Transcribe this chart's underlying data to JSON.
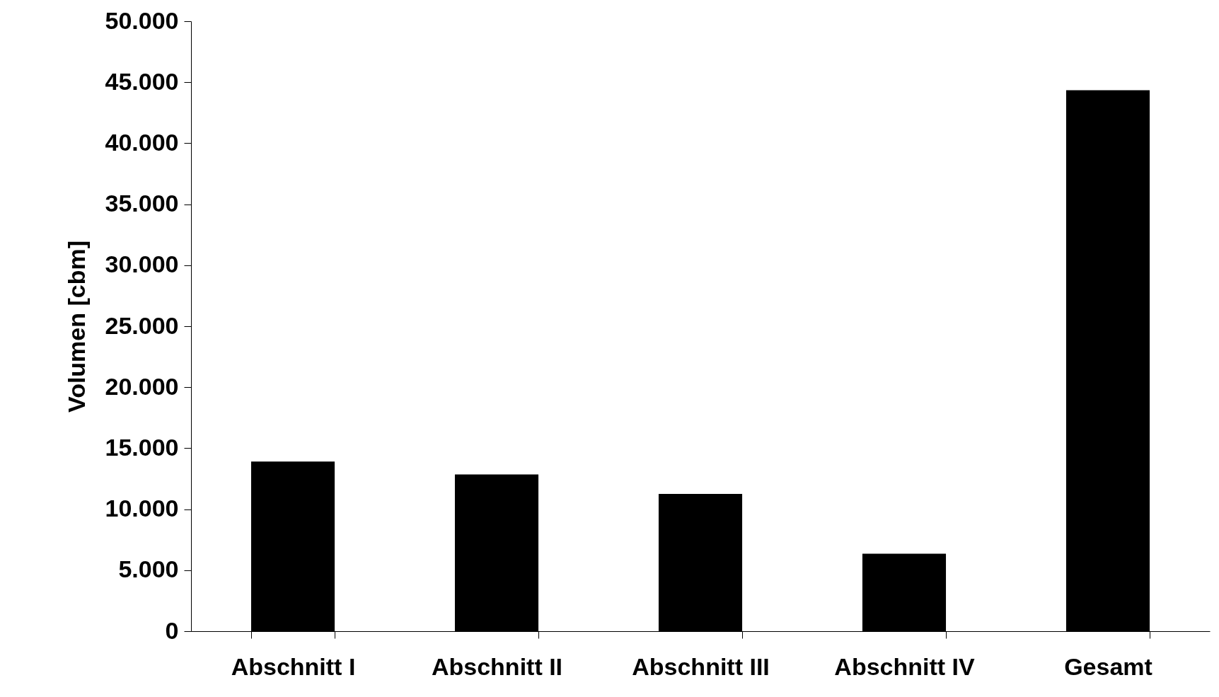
{
  "chart_data": {
    "type": "bar",
    "ylabel": "Volumen [cbm]",
    "categories": [
      "Abschnitt I",
      "Abschnitt II",
      "Abschnitt III",
      "Abschnitt IV",
      "Gesamt"
    ],
    "values": [
      13900,
      12850,
      11250,
      6350,
      44350
    ],
    "color": "#000000",
    "ylim": [
      0,
      50000
    ],
    "yticks": [
      0,
      {
        "value": 5000,
        "label": "5.000"
      },
      {
        "value": 10000,
        "label": "10.000"
      },
      {
        "value": 15000,
        "label": "15.000"
      },
      {
        "value": 20000,
        "label": "20.000"
      },
      {
        "value": 25000,
        "label": "25.000"
      },
      {
        "value": 30000,
        "label": "30.000"
      },
      {
        "value": 35000,
        "label": "35.000"
      },
      {
        "value": 40000,
        "label": "40.000"
      },
      {
        "value": 45000,
        "label": "45.000"
      },
      {
        "value": 50000,
        "label": "50.000"
      }
    ],
    "grid": false
  }
}
